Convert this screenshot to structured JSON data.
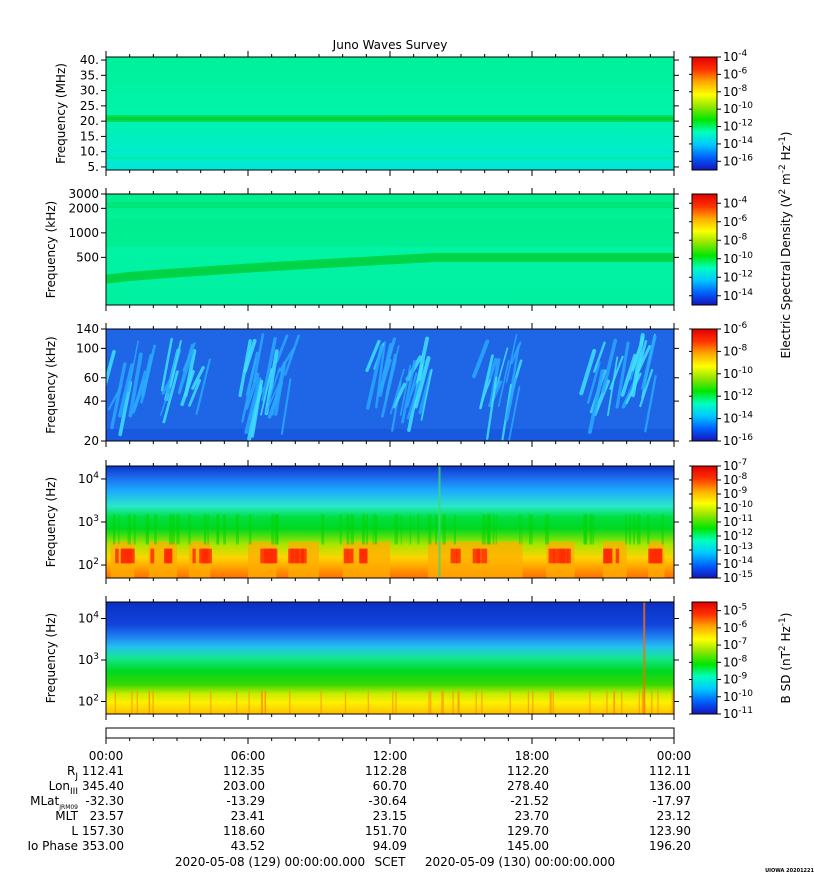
{
  "title": "Juno Waves Survey",
  "colors": {
    "colorbar_stops": [
      "#1515b8",
      "#0060ff",
      "#00c8ff",
      "#00ffc0",
      "#00e600",
      "#8ce600",
      "#ffff00",
      "#ffaa00",
      "#ff3300",
      "#e00000"
    ],
    "frame": "#000000"
  },
  "chart_data": [
    {
      "type": "heatmap",
      "panel": "mhz",
      "ylabel": "Frequency (MHz)",
      "yscale": "linear",
      "ylim": [
        4,
        41
      ],
      "yticks": [
        {
          "v": 5,
          "label": "5."
        },
        {
          "v": 10,
          "label": "10."
        },
        {
          "v": 15,
          "label": "15."
        },
        {
          "v": 20,
          "label": "20."
        },
        {
          "v": 25,
          "label": "25."
        },
        {
          "v": 30,
          "label": "30."
        },
        {
          "v": 35,
          "label": "35."
        },
        {
          "v": 40,
          "label": "40."
        }
      ],
      "colorbar": {
        "scale": "log",
        "range_exp": [
          -17,
          -4
        ],
        "ticks": [
          {
            "e": -4,
            "label": "10",
            "sup": "-4"
          },
          {
            "e": -6,
            "label": "10",
            "sup": "-6"
          },
          {
            "e": -8,
            "label": "10",
            "sup": "-8"
          },
          {
            "e": -10,
            "label": "10",
            "sup": "-10"
          },
          {
            "e": -12,
            "label": "10",
            "sup": "-12"
          },
          {
            "e": -14,
            "label": "10",
            "sup": "-14"
          },
          {
            "e": -16,
            "label": "10",
            "sup": "-16"
          }
        ]
      },
      "note_band_MHz": 21
    },
    {
      "type": "heatmap",
      "panel": "khz-high",
      "ylabel": "Frequency (kHz)",
      "yscale": "log",
      "ylim": [
        130,
        3000
      ],
      "yticks": [
        {
          "v": 500,
          "label": "500"
        },
        {
          "v": 1000,
          "label": "1000"
        },
        {
          "v": 2000,
          "label": "2000"
        },
        {
          "v": 3000,
          "label": "3000"
        }
      ],
      "colorbar": {
        "scale": "log",
        "range_exp": [
          -15,
          -3
        ],
        "ticks": [
          {
            "e": -4,
            "label": "10",
            "sup": "-4"
          },
          {
            "e": -6,
            "label": "10",
            "sup": "-6"
          },
          {
            "e": -8,
            "label": "10",
            "sup": "-8"
          },
          {
            "e": -10,
            "label": "10",
            "sup": "-10"
          },
          {
            "e": -12,
            "label": "10",
            "sup": "-12"
          },
          {
            "e": -14,
            "label": "10",
            "sup": "-14"
          }
        ]
      }
    },
    {
      "type": "heatmap",
      "panel": "khz-low",
      "ylabel": "Frequency (kHz)",
      "yscale": "log",
      "ylim": [
        20,
        140
      ],
      "yticks": [
        {
          "v": 20,
          "label": "20"
        },
        {
          "v": 40,
          "label": "40"
        },
        {
          "v": 60,
          "label": "60"
        },
        {
          "v": 100,
          "label": "100"
        },
        {
          "v": 140,
          "label": "140"
        }
      ],
      "colorbar": {
        "scale": "log",
        "range_exp": [
          -16,
          -6
        ],
        "ticks": [
          {
            "e": -6,
            "label": "10",
            "sup": "-6"
          },
          {
            "e": -8,
            "label": "10",
            "sup": "-8"
          },
          {
            "e": -10,
            "label": "10",
            "sup": "-10"
          },
          {
            "e": -12,
            "label": "10",
            "sup": "-12"
          },
          {
            "e": -14,
            "label": "10",
            "sup": "-14"
          },
          {
            "e": -16,
            "label": "10",
            "sup": "-16"
          }
        ]
      }
    },
    {
      "type": "heatmap",
      "panel": "hz-e",
      "ylabel": "Frequency (Hz)",
      "yscale": "log",
      "ylim": [
        50,
        20000
      ],
      "yticks": [
        {
          "v": 100,
          "label": "10",
          "sup": "2"
        },
        {
          "v": 1000,
          "label": "10",
          "sup": "3"
        },
        {
          "v": 10000,
          "label": "10",
          "sup": "4"
        }
      ],
      "colorbar": {
        "scale": "log",
        "range_exp": [
          -15,
          -7
        ],
        "ticks": [
          {
            "e": -7,
            "label": "10",
            "sup": "-7"
          },
          {
            "e": -8,
            "label": "10",
            "sup": "-8"
          },
          {
            "e": -9,
            "label": "10",
            "sup": "-9"
          },
          {
            "e": -10,
            "label": "10",
            "sup": "-10"
          },
          {
            "e": -11,
            "label": "10",
            "sup": "-11"
          },
          {
            "e": -12,
            "label": "10",
            "sup": "-12"
          },
          {
            "e": -13,
            "label": "10",
            "sup": "-13"
          },
          {
            "e": -14,
            "label": "10",
            "sup": "-14"
          },
          {
            "e": -15,
            "label": "10",
            "sup": "-15"
          }
        ]
      }
    },
    {
      "type": "heatmap",
      "panel": "hz-b",
      "ylabel": "Frequency (Hz)",
      "yscale": "log",
      "ylim": [
        50,
        25000
      ],
      "yticks": [
        {
          "v": 100,
          "label": "10",
          "sup": "2"
        },
        {
          "v": 1000,
          "label": "10",
          "sup": "3"
        },
        {
          "v": 10000,
          "label": "10",
          "sup": "4"
        }
      ],
      "colorbar": {
        "scale": "log",
        "range_exp": [
          -11,
          -4.5
        ],
        "ticks": [
          {
            "e": -5,
            "label": "10",
            "sup": "-5"
          },
          {
            "e": -6,
            "label": "10",
            "sup": "-6"
          },
          {
            "e": -7,
            "label": "10",
            "sup": "-7"
          },
          {
            "e": -8,
            "label": "10",
            "sup": "-8"
          },
          {
            "e": -9,
            "label": "10",
            "sup": "-9"
          },
          {
            "e": -10,
            "label": "10",
            "sup": "-10"
          },
          {
            "e": -11,
            "label": "10",
            "sup": "-11"
          }
        ]
      }
    }
  ],
  "colorbar_labels": {
    "electric": {
      "pre": "Electric Spectral Density (V",
      "s1": "2",
      "mid": " m",
      "s2": "-2",
      "mid2": " Hz",
      "s3": "-1",
      "post": ")"
    },
    "magnetic": {
      "pre": "B SD (nT",
      "s1": "2",
      "mid": " Hz",
      "s2": "-1",
      "post": ")"
    }
  },
  "time_axis": {
    "hours": [
      0,
      6,
      12,
      18,
      24
    ],
    "labels": [
      "00:00",
      "06:00",
      "12:00",
      "18:00",
      "00:00"
    ]
  },
  "ephemeris": {
    "rows": [
      {
        "label": "R",
        "sub": "J",
        "values": [
          "112.41",
          "112.35",
          "112.28",
          "112.20",
          "112.11"
        ]
      },
      {
        "label": "Lon",
        "sub": "III",
        "values": [
          "345.40",
          "203.00",
          "60.70",
          "278.40",
          "136.00"
        ]
      },
      {
        "label": "MLat",
        "sub": "JRM09",
        "values": [
          "-32.30",
          "-13.29",
          "-30.64",
          "-21.52",
          "-17.97"
        ]
      },
      {
        "label": "MLT",
        "sub": "",
        "values": [
          "23.57",
          "23.41",
          "23.15",
          "23.70",
          "23.12"
        ]
      },
      {
        "label": "L",
        "sub": "",
        "values": [
          "157.30",
          "118.60",
          "151.70",
          "129.70",
          "123.90"
        ]
      },
      {
        "label": "Io Phase",
        "sub": "",
        "values": [
          "353.00",
          "43.52",
          "94.09",
          "145.00",
          "196.20"
        ]
      }
    ]
  },
  "footer": {
    "start": "2020-05-08 (129) 00:00:00.000",
    "scet": "SCET",
    "end": "2020-05-09 (130) 00:00:00.000",
    "stamp": "UIOWA 20201221"
  }
}
